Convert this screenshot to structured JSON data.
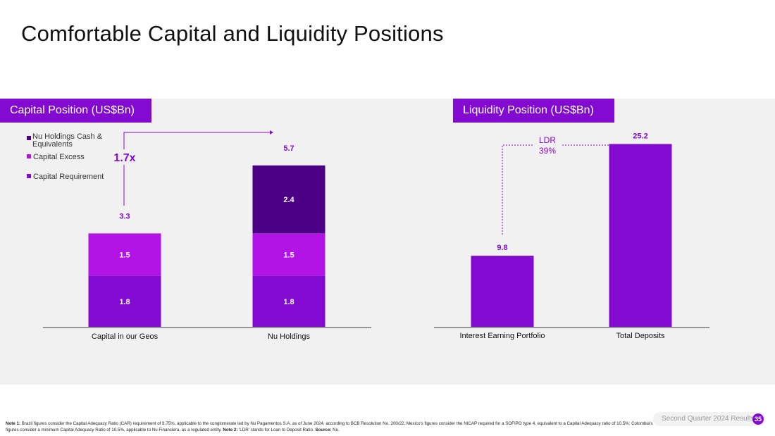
{
  "title": "Comfortable Capital and Liquidity Positions",
  "colors": {
    "accent": "#820ad1",
    "capital_requirement": "#820ad1",
    "capital_excess": "#b314e6",
    "cash_equivalents": "#4b0085",
    "band": "#f1f1f1"
  },
  "capital_panel": {
    "header": "Capital Position  (US$Bn)",
    "legend": [
      {
        "label": "Nu Holdings Cash &\nEquivalents",
        "color": "#4b0085"
      },
      {
        "label": "Capital Excess",
        "color": "#b314e6"
      },
      {
        "label": "Capital Requirement",
        "color": "#820ad1"
      }
    ],
    "multiplier": "1.7x"
  },
  "liquidity_panel": {
    "header": "Liquidity Position (US$Bn)",
    "ldr_label": "LDR",
    "ldr_value": "39%"
  },
  "chart_data": [
    {
      "type": "bar",
      "title": "Capital Position  (US$Bn)",
      "stacked": true,
      "categories": [
        "Capital in our Geos",
        "Nu Holdings"
      ],
      "series": [
        {
          "name": "Capital Requirement",
          "values": [
            1.8,
            1.8
          ],
          "color": "#820ad1"
        },
        {
          "name": "Capital Excess",
          "values": [
            1.5,
            1.5
          ],
          "color": "#b314e6"
        },
        {
          "name": "Nu Holdings Cash & Equivalents",
          "values": [
            0,
            2.4
          ],
          "color": "#4b0085"
        }
      ],
      "totals": [
        3.3,
        5.7
      ],
      "annotation": "1.7x",
      "legend_position": "top-left",
      "grid": false
    },
    {
      "type": "bar",
      "title": "Liquidity Position (US$Bn)",
      "categories": [
        "Interest Earning Portfolio",
        "Total Deposits"
      ],
      "values": [
        9.8,
        25.2
      ],
      "color": "#820ad1",
      "annotation": "LDR 39%",
      "grid": false
    }
  ],
  "footnote": {
    "note1_label": "Note 1:",
    "note1_text": " Brazil figures consider the Capital Adequacy Ratio (CAR) requirement of 8.75%, applicable to the conglomerate led by Nu Pagamentos S.A. as of June 2024, according to BCB Resolution No. 200/22. Mexico's figures consider the NICAP required for a SOFIPO type 4, equivalent to a Capital Adequacy ratio of 10.5%; Colombia's figures consider a minimum Capital Adequacy Ratio of 10.5%, applicable to Nu Financiera, as a regulated entity. ",
    "note2_label": "Note 2:",
    "note2_text": " 'LDR' stands for Loan to Deposit Ratio. ",
    "source_label": "Source:",
    "source_text": " Nu."
  },
  "footer": {
    "report": "Second Quarter 2024 Results",
    "page": "35"
  }
}
